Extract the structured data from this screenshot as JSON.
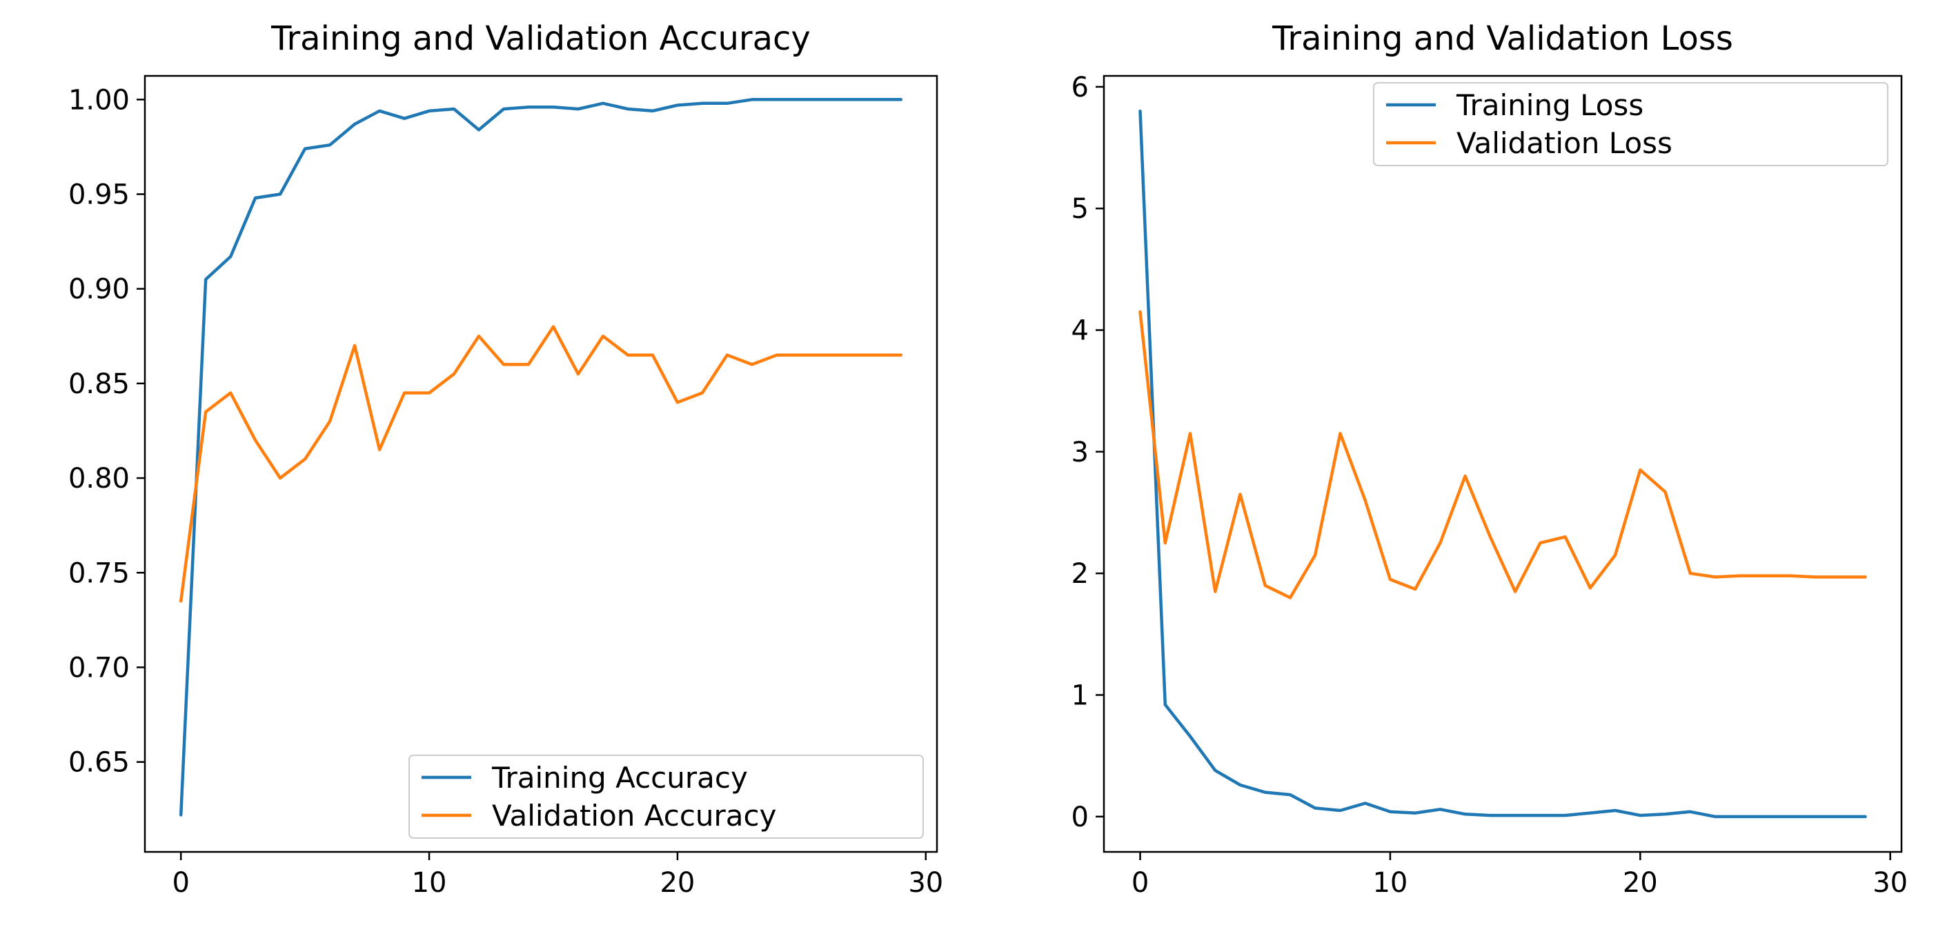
{
  "colors": {
    "blue": "#1f77b4",
    "orange": "#ff7f0e"
  },
  "chart_data": [
    {
      "type": "line",
      "title": "Training and Validation Accuracy",
      "xlabel": "",
      "ylabel": "",
      "xlim": [
        -1.45,
        30.45
      ],
      "ylim": [
        0.6025,
        1.0125
      ],
      "xticks": [
        0,
        10,
        20,
        30
      ],
      "xtick_labels": [
        "0",
        "10",
        "20",
        "30"
      ],
      "yticks": [
        0.65,
        0.7,
        0.75,
        0.8,
        0.85,
        0.9,
        0.95,
        1.0
      ],
      "ytick_labels": [
        "0.65",
        "0.70",
        "0.75",
        "0.80",
        "0.85",
        "0.90",
        "0.95",
        "1.00"
      ],
      "legend_position": "lower-right",
      "grid": false,
      "x": [
        0,
        1,
        2,
        3,
        4,
        5,
        6,
        7,
        8,
        9,
        10,
        11,
        12,
        13,
        14,
        15,
        16,
        17,
        18,
        19,
        20,
        21,
        22,
        23,
        24,
        25,
        26,
        27,
        28,
        29
      ],
      "series": [
        {
          "name": "Training Accuracy",
          "color": "#1f77b4",
          "values": [
            0.622,
            0.905,
            0.917,
            0.948,
            0.95,
            0.974,
            0.976,
            0.987,
            0.994,
            0.99,
            0.994,
            0.995,
            0.984,
            0.995,
            0.996,
            0.996,
            0.995,
            0.998,
            0.995,
            0.994,
            0.997,
            0.998,
            0.998,
            1.0,
            1.0,
            1.0,
            1.0,
            1.0,
            1.0,
            1.0
          ]
        },
        {
          "name": "Validation Accuracy",
          "color": "#ff7f0e",
          "values": [
            0.735,
            0.835,
            0.845,
            0.82,
            0.8,
            0.81,
            0.83,
            0.87,
            0.815,
            0.845,
            0.845,
            0.855,
            0.875,
            0.86,
            0.86,
            0.88,
            0.855,
            0.875,
            0.865,
            0.865,
            0.84,
            0.845,
            0.865,
            0.86,
            0.865,
            0.865,
            0.865,
            0.865,
            0.865,
            0.865
          ]
        }
      ]
    },
    {
      "type": "line",
      "title": "Training and Validation Loss",
      "xlabel": "",
      "ylabel": "",
      "xlim": [
        -1.45,
        30.45
      ],
      "ylim": [
        -0.29,
        6.09
      ],
      "xticks": [
        0,
        10,
        20,
        30
      ],
      "xtick_labels": [
        "0",
        "10",
        "20",
        "30"
      ],
      "yticks": [
        0,
        1,
        2,
        3,
        4,
        5,
        6
      ],
      "ytick_labels": [
        "0",
        "1",
        "2",
        "3",
        "4",
        "5",
        "6"
      ],
      "legend_position": "upper-right",
      "grid": false,
      "x": [
        0,
        1,
        2,
        3,
        4,
        5,
        6,
        7,
        8,
        9,
        10,
        11,
        12,
        13,
        14,
        15,
        16,
        17,
        18,
        19,
        20,
        21,
        22,
        23,
        24,
        25,
        26,
        27,
        28,
        29
      ],
      "series": [
        {
          "name": "Training Loss",
          "color": "#1f77b4",
          "values": [
            5.8,
            0.92,
            0.66,
            0.38,
            0.26,
            0.2,
            0.18,
            0.07,
            0.05,
            0.11,
            0.04,
            0.03,
            0.06,
            0.02,
            0.01,
            0.01,
            0.01,
            0.01,
            0.03,
            0.05,
            0.01,
            0.02,
            0.04,
            0.0,
            0.0,
            0.0,
            0.0,
            0.0,
            0.0,
            0.0
          ]
        },
        {
          "name": "Validation Loss",
          "color": "#ff7f0e",
          "values": [
            4.15,
            2.25,
            3.15,
            1.85,
            2.65,
            1.9,
            1.8,
            2.15,
            3.15,
            2.6,
            1.95,
            1.87,
            2.25,
            2.8,
            2.3,
            1.85,
            2.25,
            2.3,
            1.88,
            2.15,
            2.85,
            2.67,
            2.0,
            1.97,
            1.98,
            1.98,
            1.98,
            1.97,
            1.97,
            1.97
          ]
        }
      ]
    }
  ]
}
